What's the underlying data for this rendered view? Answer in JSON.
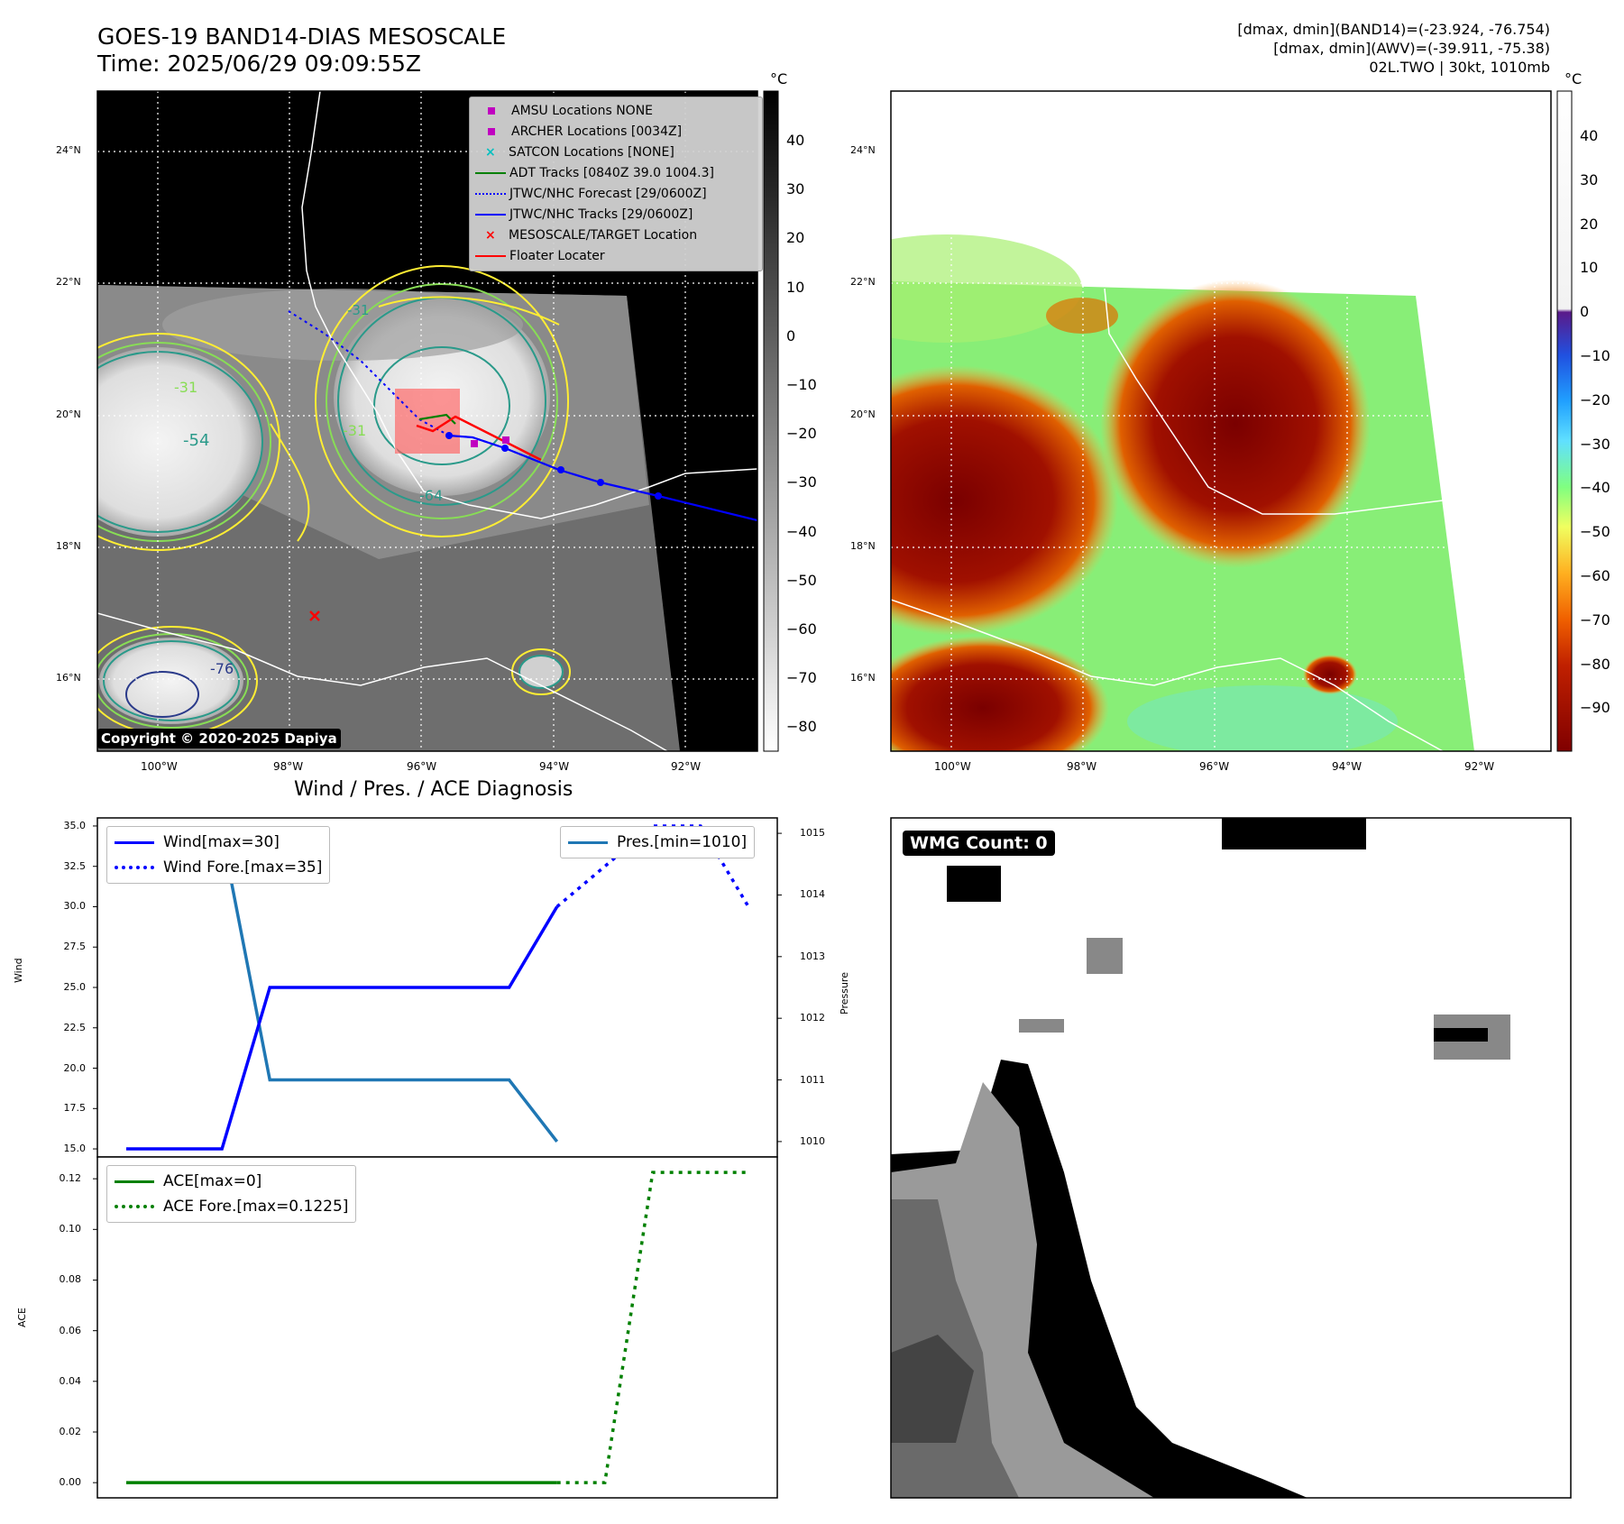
{
  "header": {
    "title_line1": "GOES-19 BAND14-DIAS MESOSCALE",
    "title_line2": "Time: 2025/06/29 09:09:55Z",
    "info_line1": "[dmax, dmin](BAND14)=(-23.924, -76.754)",
    "info_line2": "[dmax, dmin](AWV)=(-39.911, -75.38)",
    "info_line3": "02L.TWO | 30kt, 1010mb"
  },
  "panel_ir": {
    "colorbar_unit": "°C",
    "colorbar_ticks": [
      "40",
      "30",
      "20",
      "10",
      "0",
      "−10",
      "−20",
      "−30",
      "−40",
      "−50",
      "−60",
      "−70",
      "−80"
    ],
    "lat_labels": [
      "24°N",
      "22°N",
      "20°N",
      "18°N",
      "16°N"
    ],
    "lon_labels": [
      "100°W",
      "98°W",
      "96°W",
      "94°W",
      "92°W"
    ],
    "legend": [
      {
        "label": "AMSU Locations NONE",
        "marker": "square",
        "color": "#c000c0"
      },
      {
        "label": "ARCHER Locations [0034Z]",
        "marker": "square",
        "color": "#c000c0"
      },
      {
        "label": "SATCON Locations [NONE]",
        "marker": "x",
        "color": "#00c0c0"
      },
      {
        "label": "ADT Tracks [0840Z 39.0 1004.3]",
        "marker": "line",
        "color": "#008000"
      },
      {
        "label": "JTWC/NHC Forecast [29/0600Z]",
        "marker": "dotted",
        "color": "#0000ff"
      },
      {
        "label": "JTWC/NHC Tracks [29/0600Z]",
        "marker": "line-dot",
        "color": "#0000ff"
      },
      {
        "label": "MESOSCALE/TARGET Location",
        "marker": "x",
        "color": "#ff0000"
      },
      {
        "label": "Floater Locater",
        "marker": "line",
        "color": "#ff0000"
      }
    ],
    "contour_labels": [
      "-31",
      "-54",
      "-31",
      "-64",
      "-31",
      "-76"
    ],
    "copyright": "Copyright © 2020-2025 Dapiya"
  },
  "panel_awv": {
    "colorbar_unit": "°C",
    "colorbar_ticks": [
      "40",
      "30",
      "20",
      "10",
      "0",
      "−10",
      "−20",
      "−30",
      "−40",
      "−50",
      "−60",
      "−70",
      "−80",
      "−90"
    ],
    "lat_labels": [
      "24°N",
      "22°N",
      "20°N",
      "18°N",
      "16°N"
    ],
    "lon_labels": [
      "100°W",
      "98°W",
      "96°W",
      "94°W",
      "92°W"
    ]
  },
  "panel_wmg": {
    "badge": "WMG Count: 0"
  },
  "chart_data": [
    {
      "type": "line",
      "title": "Wind / Pres. / ACE Diagnosis",
      "ylabel": "Wind",
      "ylabel_right": "Pressure",
      "ylim": [
        14.5,
        35.5
      ],
      "ylim_right": [
        1009.75,
        1015.25
      ],
      "yticks": [
        "35.0",
        "32.5",
        "30.0",
        "27.5",
        "25.0",
        "22.5",
        "20.0",
        "17.5",
        "15.0"
      ],
      "yticks_right": [
        "1015",
        "1014",
        "1013",
        "1012",
        "1011",
        "1010"
      ],
      "x": [
        0,
        1,
        2,
        3,
        4,
        5,
        6,
        7,
        8,
        9,
        10,
        11,
        12
      ],
      "series": [
        {
          "name": "Wind[max=30]",
          "axis": "left",
          "style": "solid",
          "color": "#0000ff",
          "x": [
            0,
            2,
            3,
            8,
            9
          ],
          "values": [
            15,
            15,
            25,
            25,
            30
          ]
        },
        {
          "name": "Wind Fore.[max=35]",
          "axis": "left",
          "style": "dotted",
          "color": "#0000ff",
          "x": [
            9,
            10,
            11,
            12,
            13
          ],
          "values": [
            30,
            32.5,
            35,
            35,
            30
          ]
        },
        {
          "name": "Pres.[min=1010]",
          "axis": "right",
          "style": "solid",
          "color": "#1f77b4",
          "x": [
            0,
            2,
            3,
            8,
            9
          ],
          "values": [
            1015,
            1015,
            1011,
            1011,
            1010
          ]
        }
      ]
    },
    {
      "type": "line",
      "ylabel": "ACE",
      "ylim": [
        -0.006,
        0.1286
      ],
      "yticks": [
        "0.12",
        "0.10",
        "0.08",
        "0.06",
        "0.04",
        "0.02",
        "0.00"
      ],
      "series": [
        {
          "name": "ACE[max=0]",
          "style": "solid",
          "color": "#008000",
          "x": [
            0,
            9
          ],
          "values": [
            0,
            0
          ]
        },
        {
          "name": "ACE Fore.[max=0.1225]",
          "style": "dotted",
          "color": "#008000",
          "x": [
            9,
            10,
            11,
            12,
            13
          ],
          "values": [
            0,
            0,
            0.1225,
            0.1225,
            0.1225
          ]
        }
      ]
    }
  ]
}
